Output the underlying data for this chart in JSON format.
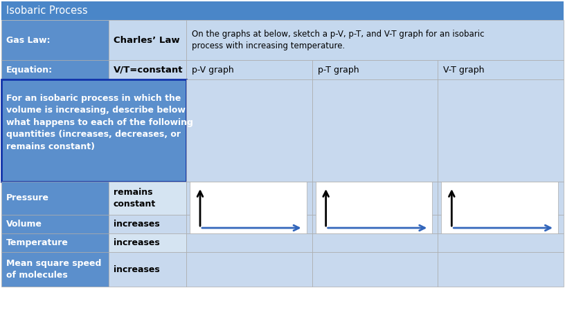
{
  "title": "Isobaric Process",
  "title_bg": "#4A86C8",
  "title_text_color": "white",
  "header_bg_dark": "#5B8FCC",
  "header_bg_light": "#C5D8EE",
  "desc_left_bg": "#5B8FCC",
  "desc_border": "#2244AA",
  "pressure_left_bg": "#5B8FCC",
  "pressure_right_bg": "#D5E4F2",
  "volume_left_bg": "#5B8FCC",
  "volume_right_bg": "#C8D9EE",
  "temp_left_bg": "#5B8FCC",
  "temp_right_bg": "#D5E4F2",
  "msq_left_bg": "#5B8FCC",
  "msq_right_bg": "#C8D9EE",
  "graph_area_bg": "#C8D9EE",
  "graph_box_bg": "#FFFFFF",
  "col1_label": "Gas Law:",
  "col2_label": "Charles’ Law",
  "col3_label": "On the graphs at below, sketch a p-V, p-T, and V-T graph for an isobaric\nprocess with increasing temperature.",
  "eq_label": "Equation:",
  "eq_value": "V/T=constant",
  "graph_labels": [
    "p-V graph",
    "p-T graph",
    "V-T graph"
  ],
  "row_labels_left": [
    "Pressure",
    "Volume",
    "Temperature",
    "Mean square speed\nof molecules"
  ],
  "row_values_right": [
    "remains\nconstant",
    "increases",
    "increases",
    "increases"
  ],
  "desc_text": "For an isobaric process in which the\nvolume is increasing, describe below\nwhat happens to each of the following\nquantities (increases, decreases, or\nremains constant)",
  "arrow_black": "#000000",
  "arrow_blue": "#3366BB"
}
